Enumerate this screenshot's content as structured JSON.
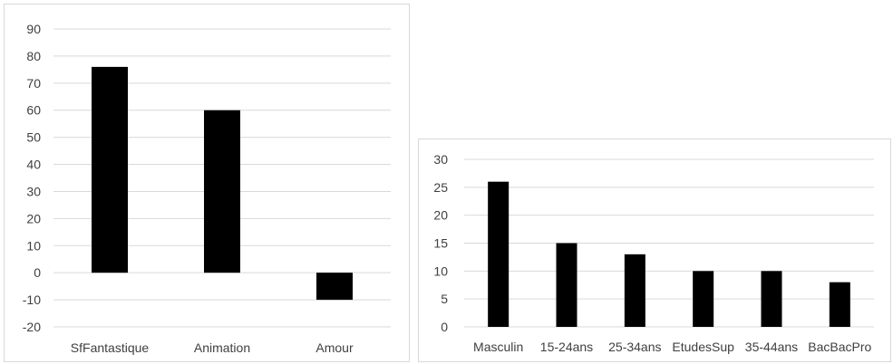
{
  "chart_data": [
    {
      "type": "bar",
      "title": "",
      "xlabel": "",
      "ylabel": "",
      "categories": [
        "SfFantastique",
        "Animation",
        "Amour"
      ],
      "values": [
        76,
        60,
        -10
      ],
      "ylim": [
        -20,
        90
      ],
      "yticks": [
        -20,
        -10,
        0,
        10,
        20,
        30,
        40,
        50,
        60,
        70,
        80,
        90
      ],
      "grid": true,
      "legend": "none",
      "bar_color": "#000000"
    },
    {
      "type": "bar",
      "title": "",
      "xlabel": "",
      "ylabel": "",
      "categories": [
        "Masculin",
        "15-24ans",
        "25-34ans",
        "EtudesSup",
        "35-44ans",
        "BacBacPro"
      ],
      "values": [
        26,
        15,
        13,
        10,
        10,
        8
      ],
      "ylim": [
        0,
        30
      ],
      "yticks": [
        0,
        5,
        10,
        15,
        20,
        25,
        30
      ],
      "grid": true,
      "legend": "none",
      "bar_color": "#000000"
    }
  ]
}
